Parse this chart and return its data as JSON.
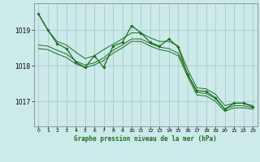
{
  "title": "Graphe pression niveau de la mer (hPa)",
  "bg_color": "#cceaea",
  "grid_color": "#aacccc",
  "line_color": "#1a6e1a",
  "label_color": "#1a6e1a",
  "x_ticks": [
    0,
    1,
    2,
    3,
    4,
    5,
    6,
    7,
    8,
    9,
    10,
    11,
    12,
    13,
    14,
    15,
    16,
    17,
    18,
    19,
    20,
    21,
    22,
    23
  ],
  "y_ticks": [
    1017,
    1018,
    1019
  ],
  "ylim": [
    1016.3,
    1019.75
  ],
  "xlim": [
    -0.5,
    23.5
  ],
  "line_top": [
    1019.45,
    1019.0,
    1018.68,
    1018.58,
    1018.38,
    1018.2,
    1018.28,
    1018.45,
    1018.6,
    1018.75,
    1018.92,
    1018.92,
    1018.78,
    1018.68,
    1018.68,
    1018.55,
    1017.9,
    1017.38,
    1017.35,
    1017.2,
    1016.88,
    1016.95,
    1016.95,
    1016.88
  ],
  "line_mid1": [
    1018.58,
    1018.55,
    1018.43,
    1018.33,
    1018.13,
    1018.02,
    1018.08,
    1018.22,
    1018.43,
    1018.58,
    1018.75,
    1018.75,
    1018.62,
    1018.52,
    1018.48,
    1018.35,
    1017.78,
    1017.25,
    1017.22,
    1017.08,
    1016.78,
    1016.88,
    1016.88,
    1016.82
  ],
  "line_mid2": [
    1018.48,
    1018.45,
    1018.33,
    1018.23,
    1018.05,
    1017.95,
    1018.02,
    1018.15,
    1018.35,
    1018.5,
    1018.68,
    1018.68,
    1018.55,
    1018.45,
    1018.4,
    1018.28,
    1017.7,
    1017.18,
    1017.15,
    1017.0,
    1016.72,
    1016.82,
    1016.82,
    1016.78
  ],
  "line_zigzag": [
    1019.45,
    1019.0,
    1018.62,
    1018.48,
    1018.1,
    1017.95,
    1018.28,
    1017.95,
    1018.55,
    1018.65,
    1019.12,
    1018.92,
    1018.65,
    1018.55,
    1018.75,
    1018.52,
    1017.75,
    1017.3,
    1017.28,
    1017.1,
    1016.78,
    1016.95,
    1016.95,
    1016.85
  ]
}
